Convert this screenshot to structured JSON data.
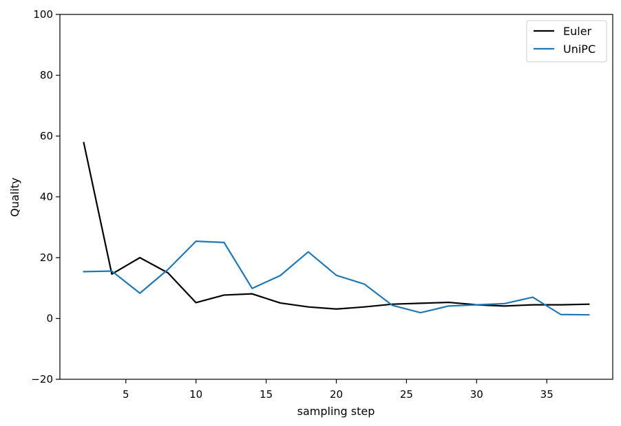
{
  "chart_data": {
    "type": "line",
    "title": "",
    "xlabel": "sampling step",
    "ylabel": "Quality",
    "xlim": [
      0.3,
      39.7
    ],
    "ylim": [
      -20,
      100
    ],
    "xticks": [
      5,
      10,
      15,
      20,
      25,
      30,
      35
    ],
    "yticks": [
      -20,
      0,
      20,
      40,
      60,
      80,
      100
    ],
    "grid": false,
    "legend_position": "top-right",
    "x": [
      2,
      4,
      6,
      8,
      10,
      12,
      14,
      16,
      18,
      20,
      22,
      24,
      26,
      28,
      30,
      32,
      34,
      36,
      38
    ],
    "series": [
      {
        "name": "Euler",
        "color": "#000000",
        "values": [
          57.8,
          14.6,
          20.0,
          15.0,
          5.2,
          7.7,
          8.1,
          5.1,
          3.8,
          3.1,
          3.8,
          4.7,
          5.0,
          5.3,
          4.5,
          4.1,
          4.5,
          4.5,
          4.7
        ]
      },
      {
        "name": "UniPC",
        "color": "#1f77b4",
        "values": [
          15.4,
          15.6,
          8.3,
          16.1,
          25.4,
          25.0,
          9.9,
          14.1,
          21.9,
          14.2,
          11.3,
          4.3,
          1.9,
          4.1,
          4.5,
          4.9,
          7.0,
          1.3,
          1.2
        ]
      }
    ]
  }
}
